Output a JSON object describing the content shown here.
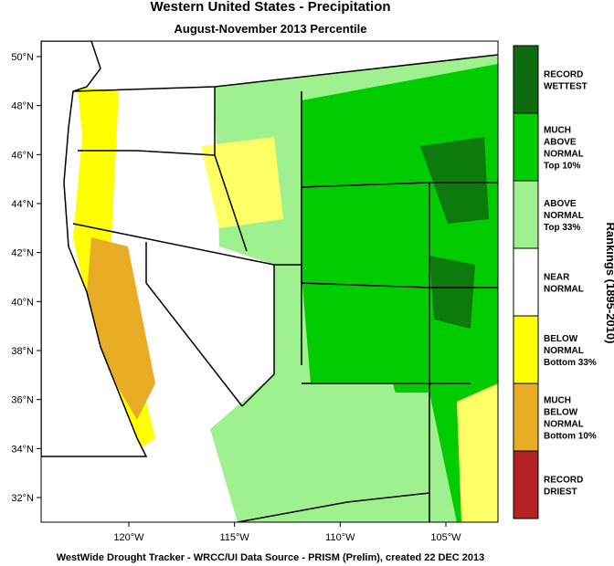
{
  "header": {
    "title": "Western United States - Precipitation",
    "subtitle": "August-November 2013 Percentile"
  },
  "map": {
    "lat_ticks": [
      {
        "value": 50,
        "label": "50°N"
      },
      {
        "value": 48,
        "label": "48°N"
      },
      {
        "value": 46,
        "label": "46°N"
      },
      {
        "value": 44,
        "label": "44°N"
      },
      {
        "value": 42,
        "label": "42°N"
      },
      {
        "value": 40,
        "label": "40°N"
      },
      {
        "value": 38,
        "label": "38°N"
      },
      {
        "value": 36,
        "label": "36°N"
      },
      {
        "value": 34,
        "label": "34°N"
      },
      {
        "value": 32,
        "label": "32°N"
      }
    ],
    "lon_ticks": [
      {
        "value": -120,
        "label": "120°W"
      },
      {
        "value": -115,
        "label": "115°W"
      },
      {
        "value": -110,
        "label": "110°W"
      },
      {
        "value": -105,
        "label": "105°W"
      }
    ]
  },
  "legend": {
    "title": "Rankings (1895-2010)",
    "items": [
      {
        "lines": [
          "RECORD",
          "WETTEST"
        ],
        "color": "#0f6b0f"
      },
      {
        "lines": [
          "MUCH",
          "ABOVE",
          "NORMAL",
          "Top 10%"
        ],
        "color": "#00cc00"
      },
      {
        "lines": [
          "ABOVE",
          "NORMAL",
          "Top 33%"
        ],
        "color": "#9ff08f"
      },
      {
        "lines": [
          "NEAR",
          "NORMAL"
        ],
        "color": "#ffffff"
      },
      {
        "lines": [
          "BELOW",
          "NORMAL",
          "Bottom 33%"
        ],
        "color": "#ffff00"
      },
      {
        "lines": [
          "MUCH",
          "BELOW",
          "NORMAL",
          "Bottom 10%"
        ],
        "color": "#e8ad24"
      },
      {
        "lines": [
          "RECORD",
          "DRIEST"
        ],
        "color": "#b22222"
      }
    ]
  },
  "footer": "WestWide Drought Tracker - WRCC/UI  Data Source - PRISM (Prelim), created 22 DEC 2013"
}
